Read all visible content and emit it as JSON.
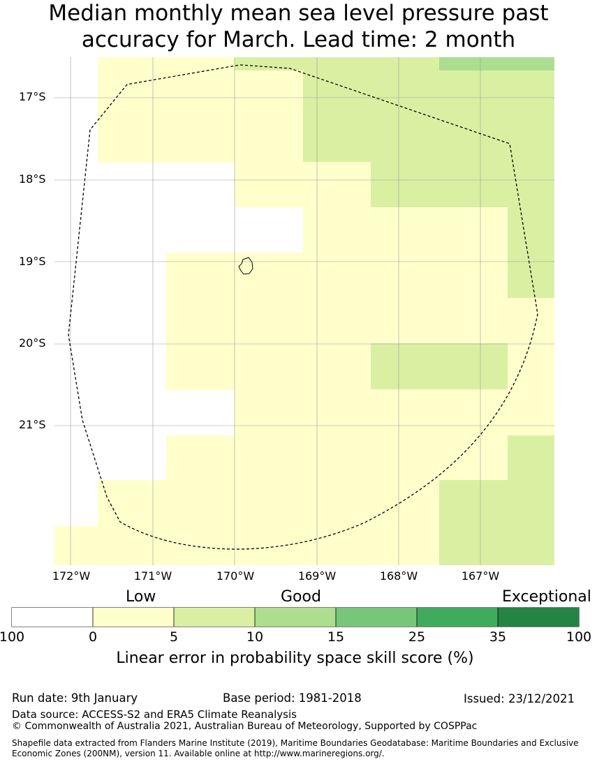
{
  "title": {
    "line1": "Median monthly mean sea level pressure past",
    "line2": "accuracy for March. Lead time: 2 month"
  },
  "map": {
    "lat_labels": [
      "17°S",
      "18°S",
      "19°S",
      "20°S",
      "21°S"
    ],
    "lon_labels": [
      "172°W",
      "171°W",
      "170°W",
      "169°W",
      "168°W",
      "167°W"
    ],
    "colors": {
      "none": "#ffffff",
      "low": "#ffffcc",
      "c5_10": "#d9f0a3",
      "c10_15": "#addd8e",
      "c15_25": "#78c679",
      "c25_35": "#41ab5d",
      "c35_100": "#238443"
    }
  },
  "legend": {
    "categories": [
      "Low",
      "Good",
      "Exceptional"
    ],
    "ticks": [
      "100",
      "0",
      "5",
      "10",
      "15",
      "25",
      "35",
      "100"
    ],
    "colors": [
      "#ffffff",
      "#ffffcc",
      "#d9f0a3",
      "#addd8e",
      "#78c679",
      "#41ab5d",
      "#238443"
    ],
    "title": "Linear error in probability space skill score (%)"
  },
  "footer": {
    "run_date": "Run date: 9th January",
    "base_period": "Base period: 1981-2018",
    "issued": "Issued: 23/12/2021",
    "data_source": "Data source: ACCESS-S2 and ERA5 Climate Reanalysis",
    "copyright": "© Commonwealth of Australia 2021, Australian Bureau of Meteorology, Supported by COSPPac",
    "shapefile": "Shapefile data extracted from Flanders Marine Institute (2019), Maritime Boundaries Geodatabase: Maritime Boundaries and Exclusive Economic Zones (200NM), version 11. Available online at http://www.marineregions.org/."
  }
}
